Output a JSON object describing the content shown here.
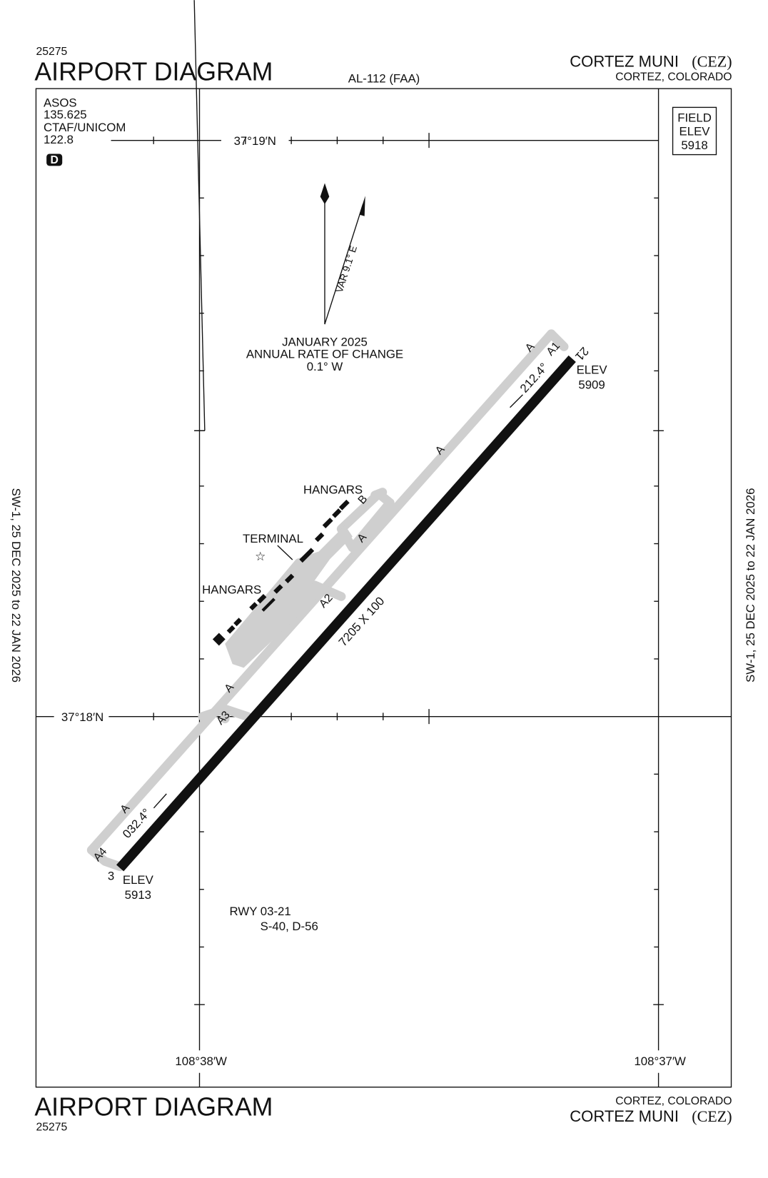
{
  "header": {
    "chart_number": "25275",
    "title": "AIRPORT DIAGRAM",
    "procedure": "AL-112 (FAA)",
    "airport": "CORTEZ MUNI",
    "airport_id": "(CEZ)",
    "location": "CORTEZ, COLORADO"
  },
  "comms": [
    "ASOS",
    "135.625",
    "CTAF/UNICOM",
    "122.8"
  ],
  "airspace_class": "D",
  "field_elevation": {
    "label_1": "FIELD",
    "label_2": "ELEV",
    "value": "5918"
  },
  "coordinates": {
    "lat_north": "37°19′N",
    "lat_south": "37°18′N",
    "lon_west": "108°38′W",
    "lon_east": "108°37′W"
  },
  "magnetic": {
    "variation": "VAR 9.1° E",
    "date": "JANUARY 2025",
    "rate_label": "ANNUAL RATE OF CHANGE",
    "rate": "0.1° W"
  },
  "runway": {
    "end_ne": "21",
    "end_sw": "3",
    "heading_ne": "212.4°",
    "heading_sw": "032.4°",
    "dimensions": "7205 X 100",
    "elev_label": "ELEV",
    "elev_ne": "5909",
    "elev_sw": "5913",
    "info_title": "RWY 03-21",
    "strength": "S-40, D-56"
  },
  "taxiways": {
    "a": "A",
    "a1": "A1",
    "a2": "A2",
    "a3": "A3",
    "a4": "A4",
    "b": "B"
  },
  "buildings": {
    "hangars": "HANGARS",
    "terminal": "TERMINAL"
  },
  "effective": "SW-1,  25 DEC 2025  to  22 JAN 2026"
}
